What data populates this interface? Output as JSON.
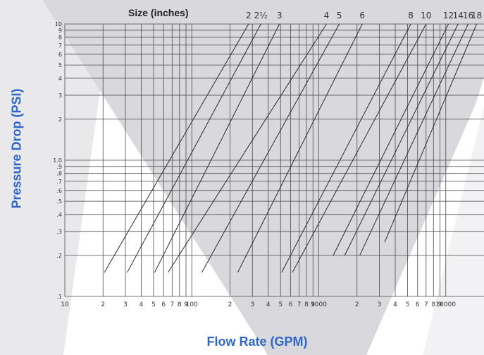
{
  "chart_data": {
    "type": "line",
    "title": "",
    "xlabel": "Flow Rate (GPM)",
    "ylabel": "Pressure Drop (PSI)",
    "size_title": "Size (inches)",
    "x_scale": "log",
    "y_scale": "log",
    "xlim": [
      10,
      20000
    ],
    "ylim": [
      0.1,
      10
    ],
    "grid": true,
    "x_tick_labels": [
      {
        "value": 10,
        "label": "10"
      },
      {
        "value": 20,
        "label": "2"
      },
      {
        "value": 30,
        "label": "3"
      },
      {
        "value": 40,
        "label": "4"
      },
      {
        "value": 50,
        "label": "5"
      },
      {
        "value": 60,
        "label": "6"
      },
      {
        "value": 70,
        "label": "7"
      },
      {
        "value": 80,
        "label": "8"
      },
      {
        "value": 90,
        "label": "9"
      },
      {
        "value": 100,
        "label": "100"
      },
      {
        "value": 200,
        "label": "2"
      },
      {
        "value": 300,
        "label": "3"
      },
      {
        "value": 400,
        "label": "4"
      },
      {
        "value": 500,
        "label": "5"
      },
      {
        "value": 600,
        "label": "6"
      },
      {
        "value": 700,
        "label": "7"
      },
      {
        "value": 800,
        "label": "8"
      },
      {
        "value": 900,
        "label": "9"
      },
      {
        "value": 1000,
        "label": "1000"
      },
      {
        "value": 2000,
        "label": "2"
      },
      {
        "value": 3000,
        "label": "3"
      },
      {
        "value": 4000,
        "label": "4"
      },
      {
        "value": 5000,
        "label": "5"
      },
      {
        "value": 6000,
        "label": "6"
      },
      {
        "value": 7000,
        "label": "7"
      },
      {
        "value": 8000,
        "label": "8"
      },
      {
        "value": 9000,
        "label": "9"
      },
      {
        "value": 10000,
        "label": "10000"
      }
    ],
    "y_tick_labels": [
      {
        "value": 0.1,
        "label": ".1"
      },
      {
        "value": 0.2,
        "label": ".2"
      },
      {
        "value": 0.3,
        "label": ".3"
      },
      {
        "value": 0.4,
        "label": ".4"
      },
      {
        "value": 0.5,
        "label": ".5"
      },
      {
        "value": 0.6,
        "label": ".6"
      },
      {
        "value": 0.7,
        "label": ".7"
      },
      {
        "value": 0.8,
        "label": ".8"
      },
      {
        "value": 0.9,
        "label": ".9"
      },
      {
        "value": 1,
        "label": "1.0"
      },
      {
        "value": 2,
        "label": "2"
      },
      {
        "value": 3,
        "label": "3"
      },
      {
        "value": 4,
        "label": "4"
      },
      {
        "value": 5,
        "label": "5"
      },
      {
        "value": 6,
        "label": "6"
      },
      {
        "value": 7,
        "label": "7"
      },
      {
        "value": 8,
        "label": "8"
      },
      {
        "value": 9,
        "label": "9"
      },
      {
        "value": 10,
        "label": "10"
      }
    ],
    "series": [
      {
        "label": "2",
        "x": [
          20.5,
          280
        ],
        "y": [
          0.15,
          10
        ]
      },
      {
        "label": "2½",
        "x": [
          31,
          350
        ],
        "y": [
          0.15,
          10
        ]
      },
      {
        "label": "3",
        "x": [
          51,
          490
        ],
        "y": [
          0.15,
          10
        ]
      },
      {
        "label": "4",
        "x": [
          65,
          1150
        ],
        "y": [
          0.15,
          10
        ]
      },
      {
        "label": "5",
        "x": [
          120,
          1450
        ],
        "y": [
          0.15,
          10
        ]
      },
      {
        "label": "6",
        "x": [
          230,
          2200
        ],
        "y": [
          0.15,
          10
        ]
      },
      {
        "label": "8",
        "x": [
          510,
          5300
        ],
        "y": [
          0.15,
          10
        ]
      },
      {
        "label": "10",
        "x": [
          620,
          7000
        ],
        "y": [
          0.15,
          10
        ]
      },
      {
        "label": "12",
        "x": [
          1300,
          10500
        ],
        "y": [
          0.2,
          10
        ]
      },
      {
        "label": "14",
        "x": [
          1600,
          12500
        ],
        "y": [
          0.2,
          10
        ]
      },
      {
        "label": "16",
        "x": [
          2100,
          15000
        ],
        "y": [
          0.2,
          10
        ]
      },
      {
        "label": "18",
        "x": [
          3300,
          17500
        ],
        "y": [
          0.25,
          10
        ]
      }
    ]
  }
}
